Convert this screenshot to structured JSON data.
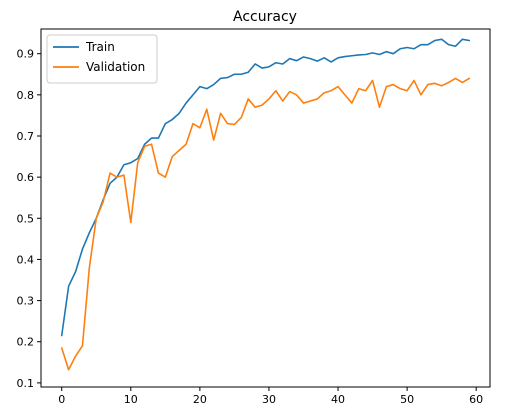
{
  "chart_data": {
    "type": "line",
    "title": "Accuracy",
    "xlabel": "",
    "ylabel": "",
    "xlim": [
      -3,
      62
    ],
    "ylim": [
      0.09,
      0.96
    ],
    "xticks": [
      0,
      10,
      20,
      30,
      40,
      50,
      60
    ],
    "yticks": [
      0.1,
      0.2,
      0.3,
      0.4,
      0.5,
      0.6,
      0.7,
      0.8,
      0.9
    ],
    "grid": false,
    "legend_position": "top-left",
    "x": [
      0,
      1,
      2,
      3,
      4,
      5,
      6,
      7,
      8,
      9,
      10,
      11,
      12,
      13,
      14,
      15,
      16,
      17,
      18,
      19,
      20,
      21,
      22,
      23,
      24,
      25,
      26,
      27,
      28,
      29,
      30,
      31,
      32,
      33,
      34,
      35,
      36,
      37,
      38,
      39,
      40,
      41,
      42,
      43,
      44,
      45,
      46,
      47,
      48,
      49,
      50,
      51,
      52,
      53,
      54,
      55,
      56,
      57,
      58,
      59
    ],
    "series": [
      {
        "name": "Train",
        "color": "#1f77b4",
        "values": [
          0.215,
          0.335,
          0.37,
          0.425,
          0.465,
          0.5,
          0.545,
          0.585,
          0.6,
          0.63,
          0.635,
          0.645,
          0.68,
          0.695,
          0.695,
          0.73,
          0.74,
          0.755,
          0.78,
          0.8,
          0.82,
          0.815,
          0.825,
          0.84,
          0.842,
          0.85,
          0.85,
          0.855,
          0.875,
          0.865,
          0.868,
          0.878,
          0.875,
          0.888,
          0.883,
          0.892,
          0.888,
          0.882,
          0.89,
          0.88,
          0.89,
          0.893,
          0.895,
          0.897,
          0.898,
          0.902,
          0.898,
          0.905,
          0.9,
          0.912,
          0.915,
          0.912,
          0.922,
          0.922,
          0.932,
          0.935,
          0.922,
          0.918,
          0.935,
          0.932
        ]
      },
      {
        "name": "Validation",
        "color": "#ff7f0e",
        "values": [
          0.185,
          0.132,
          0.165,
          0.19,
          0.38,
          0.5,
          0.54,
          0.61,
          0.6,
          0.605,
          0.49,
          0.635,
          0.675,
          0.68,
          0.61,
          0.6,
          0.65,
          0.665,
          0.68,
          0.73,
          0.72,
          0.765,
          0.69,
          0.755,
          0.73,
          0.728,
          0.745,
          0.79,
          0.77,
          0.775,
          0.79,
          0.81,
          0.785,
          0.808,
          0.8,
          0.78,
          0.785,
          0.79,
          0.805,
          0.81,
          0.82,
          0.8,
          0.78,
          0.815,
          0.81,
          0.835,
          0.77,
          0.82,
          0.825,
          0.815,
          0.81,
          0.835,
          0.8,
          0.825,
          0.828,
          0.822,
          0.83,
          0.84,
          0.83,
          0.84
        ]
      }
    ]
  }
}
